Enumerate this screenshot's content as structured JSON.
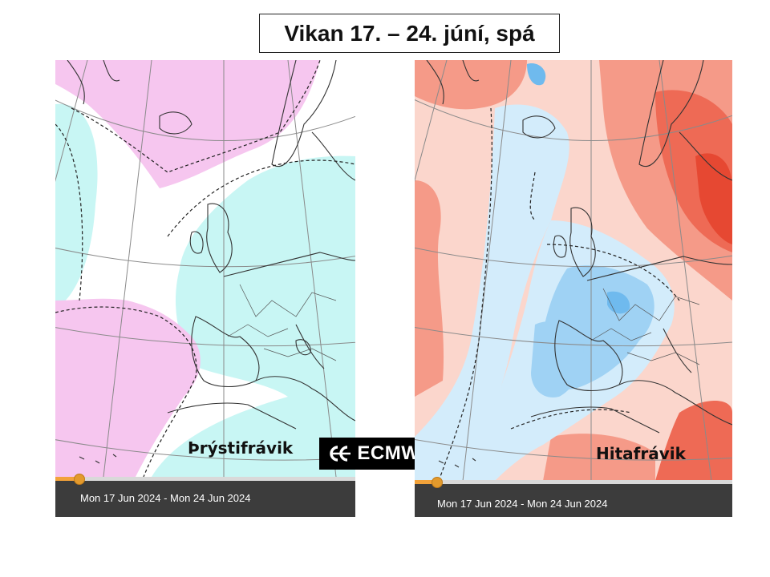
{
  "title": "Vikan 17. – 24. júní, spá",
  "maps": [
    {
      "label": "Þrýstifrávik",
      "date_range": "Mon 17 Jun 2024 - Mon 24 Jun 2024",
      "colors": {
        "positive": "#f6c6ef",
        "negative": "#c8f6f4",
        "neutral": "#ffffff"
      }
    },
    {
      "label": "Hitafrávik",
      "date_range": "Mon 17 Jun 2024 - Mon 24 Jun 2024",
      "colors": {
        "warm1": "#fbd6cc",
        "warm2": "#f59a88",
        "warm3": "#ee6a55",
        "warm4": "#e64832",
        "cold1": "#d3ecfb",
        "cold2": "#9fd2f4",
        "cold3": "#6fbaee",
        "neutral": "#ffffff"
      }
    }
  ],
  "timeline": {
    "position_fraction": 0.08,
    "accent": "#e39a2d"
  },
  "logo": {
    "text": "ECMWF",
    "icon": "ecmwf-logo-icon"
  }
}
